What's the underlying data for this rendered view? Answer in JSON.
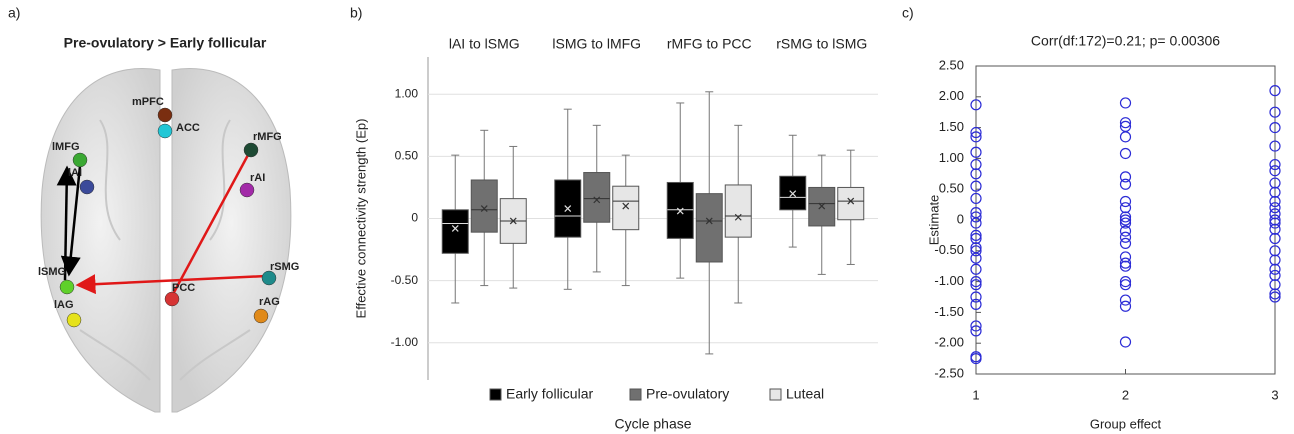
{
  "panel_labels": [
    "a)",
    "b)",
    "c)"
  ],
  "diagram": {
    "title": "Pre-ovulatory > Early follicular",
    "nodes": [
      {
        "label": "mPFC",
        "color": "#7a2e10"
      },
      {
        "label": "ACC",
        "color": "#22c7d6"
      },
      {
        "label": "lMFG",
        "color": "#3aa832"
      },
      {
        "label": "lAI",
        "color": "#3b4a9a"
      },
      {
        "label": "rMFG",
        "color": "#1e4a34"
      },
      {
        "label": "rAI",
        "color": "#a22aa8"
      },
      {
        "label": "lSMG",
        "color": "#5fd02a"
      },
      {
        "label": "rSMG",
        "color": "#1e8a8a"
      },
      {
        "label": "PCC",
        "color": "#d63434"
      },
      {
        "label": "lAG",
        "color": "#e6e21a"
      },
      {
        "label": "rAG",
        "color": "#e08a1a"
      }
    ]
  },
  "chart_data": [
    {
      "type": "box",
      "y_label": "Effective connectivity strength (Ep)",
      "x_label": "Cycle phase",
      "categories": [
        "lAI to lSMG",
        "lSMG to lMFG",
        "rMFG to PCC",
        "rSMG to lSMG"
      ],
      "ylim": [
        -1.3,
        1.3
      ],
      "yticks": [
        {
          "value": -1,
          "label": "-1.00"
        },
        {
          "value": -0.5,
          "label": "-0.50"
        },
        0,
        {
          "value": 0.5,
          "label": "0.50"
        },
        {
          "value": 1,
          "label": "1.00"
        }
      ],
      "grid": true,
      "series": [
        {
          "name": "Early follicular",
          "color": "#000000",
          "boxes": [
            {
              "min": -0.68,
              "q1": -0.28,
              "median": -0.04,
              "q3": 0.07,
              "max": 0.51,
              "mean": -0.08
            },
            {
              "min": -0.57,
              "q1": -0.15,
              "median": 0.02,
              "q3": 0.31,
              "max": 0.88,
              "mean": 0.08
            },
            {
              "min": -0.48,
              "q1": -0.16,
              "median": 0.07,
              "q3": 0.29,
              "max": 0.93,
              "mean": 0.06
            },
            {
              "min": -0.23,
              "q1": 0.07,
              "median": 0.17,
              "q3": 0.34,
              "max": 0.67,
              "mean": 0.2
            }
          ]
        },
        {
          "name": "Pre-ovulatory",
          "color": "#707070",
          "boxes": [
            {
              "min": -0.54,
              "q1": -0.11,
              "median": 0.07,
              "q3": 0.31,
              "max": 0.71,
              "mean": 0.08
            },
            {
              "min": -0.43,
              "q1": -0.03,
              "median": 0.16,
              "q3": 0.37,
              "max": 0.75,
              "mean": 0.15
            },
            {
              "min": -1.09,
              "q1": -0.35,
              "median": -0.02,
              "q3": 0.2,
              "max": 1.02,
              "mean": -0.02
            },
            {
              "min": -0.45,
              "q1": -0.06,
              "median": 0.12,
              "q3": 0.25,
              "max": 0.51,
              "mean": 0.1
            }
          ]
        },
        {
          "name": "Luteal",
          "color": "#e6e6e6",
          "boxes": [
            {
              "min": -0.56,
              "q1": -0.2,
              "median": -0.02,
              "q3": 0.16,
              "max": 0.58,
              "mean": -0.02
            },
            {
              "min": -0.54,
              "q1": -0.09,
              "median": 0.14,
              "q3": 0.26,
              "max": 0.51,
              "mean": 0.1
            },
            {
              "min": -0.68,
              "q1": -0.15,
              "median": 0.02,
              "q3": 0.27,
              "max": 0.75,
              "mean": 0.01
            },
            {
              "min": -0.37,
              "q1": -0.01,
              "median": 0.14,
              "q3": 0.25,
              "max": 0.55,
              "mean": 0.14
            }
          ]
        }
      ]
    },
    {
      "type": "scatter",
      "title": "Corr(df:172)=0.21; p= 0.00306",
      "x_label": "Group effect",
      "y_label": "Estimate",
      "color": "#2b2bd6",
      "xlim": [
        1,
        3
      ],
      "xticks": [
        1,
        2,
        3
      ],
      "ylim": [
        -2.5,
        2.5
      ],
      "yticks": [
        {
          "value": -2.5,
          "label": "-2.50"
        },
        {
          "value": -2,
          "label": "-2.00"
        },
        {
          "value": -1.5,
          "label": "-1.50"
        },
        {
          "value": -1,
          "label": "-1.00"
        },
        {
          "value": -0.5,
          "label": "-0.50"
        },
        0,
        {
          "value": 0.5,
          "label": "0.50"
        },
        {
          "value": 1,
          "label": "1.00"
        },
        {
          "value": 1.5,
          "label": "1.50"
        },
        {
          "value": 2,
          "label": "2.00"
        },
        {
          "value": 2.5,
          "label": "2.50"
        }
      ],
      "x": [
        1,
        1,
        1,
        1,
        1,
        1,
        1,
        1,
        1,
        1,
        1,
        1,
        1,
        1,
        1,
        1,
        1,
        1,
        1,
        1,
        1,
        1,
        1,
        1,
        1,
        2,
        2,
        2,
        2,
        2,
        2,
        2,
        2,
        2,
        2,
        2,
        2,
        2,
        2,
        2,
        2,
        2,
        2,
        2,
        2,
        2,
        2,
        2,
        3,
        3,
        3,
        3,
        3,
        3,
        3,
        3,
        3,
        3,
        3,
        3,
        3,
        3,
        3,
        3,
        3,
        3,
        3,
        3,
        3,
        3
      ],
      "y": [
        1.87,
        1.42,
        1.35,
        1.1,
        0.9,
        0.75,
        0.55,
        0.35,
        0.12,
        0.05,
        -0.05,
        -0.25,
        -0.3,
        -0.45,
        -0.5,
        -0.62,
        -0.8,
        -1.0,
        -1.05,
        -1.25,
        -1.37,
        -1.72,
        -1.8,
        -2.22,
        -2.25,
        1.9,
        1.58,
        1.52,
        1.35,
        1.08,
        0.7,
        0.58,
        0.3,
        0.2,
        0.05,
        0,
        -0.05,
        -0.18,
        -0.28,
        -0.38,
        -0.6,
        -0.7,
        -0.75,
        -1.0,
        -1.05,
        -1.3,
        -1.4,
        -1.98,
        2.1,
        1.75,
        1.5,
        1.2,
        0.9,
        0.8,
        0.6,
        0.45,
        0.3,
        0.2,
        0.1,
        0,
        -0.05,
        -0.15,
        -0.3,
        -0.5,
        -0.65,
        -0.8,
        -0.9,
        -1.05,
        -1.2,
        -1.25
      ]
    }
  ]
}
